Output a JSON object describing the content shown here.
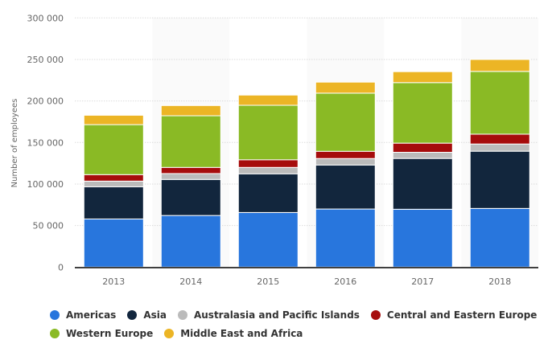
{
  "chart_data": {
    "type": "bar",
    "stacked": true,
    "title": "",
    "xlabel": "",
    "ylabel": "Number of employees",
    "ylim": [
      0,
      300000
    ],
    "yticks": [
      0,
      50000,
      100000,
      150000,
      200000,
      250000,
      300000
    ],
    "ytick_labels": [
      "0",
      "50 000",
      "100 000",
      "150 000",
      "200 000",
      "250 000",
      "300 000"
    ],
    "grid": true,
    "legend_position": "bottom-left",
    "categories": [
      "2013",
      "2014",
      "2015",
      "2016",
      "2017",
      "2018"
    ],
    "series": [
      {
        "name": "Americas",
        "color": "#2876dd",
        "values": [
          57900,
          62100,
          65700,
          69900,
          69600,
          70600
        ]
      },
      {
        "name": "Asia",
        "color": "#12263d",
        "values": [
          38800,
          43400,
          46600,
          53000,
          61200,
          68900
        ]
      },
      {
        "name": "Australasia and Pacific Islands",
        "color": "#bbbbbb",
        "values": [
          6800,
          7100,
          7700,
          7800,
          7400,
          8700
        ]
      },
      {
        "name": "Central and Eastern Europe",
        "color": "#a60c0c",
        "values": [
          7800,
          7400,
          9200,
          8700,
          11000,
          11800
        ]
      },
      {
        "name": "Western Europe",
        "color": "#8aba25",
        "values": [
          60200,
          62200,
          65600,
          70000,
          72900,
          75600
        ]
      },
      {
        "name": "Middle East and Africa",
        "color": "#ecb525",
        "values": [
          11300,
          12300,
          12300,
          13300,
          13200,
          14400
        ]
      }
    ]
  },
  "legend": {
    "rows": [
      [
        0,
        1,
        2,
        3
      ],
      [
        4,
        5
      ]
    ]
  }
}
